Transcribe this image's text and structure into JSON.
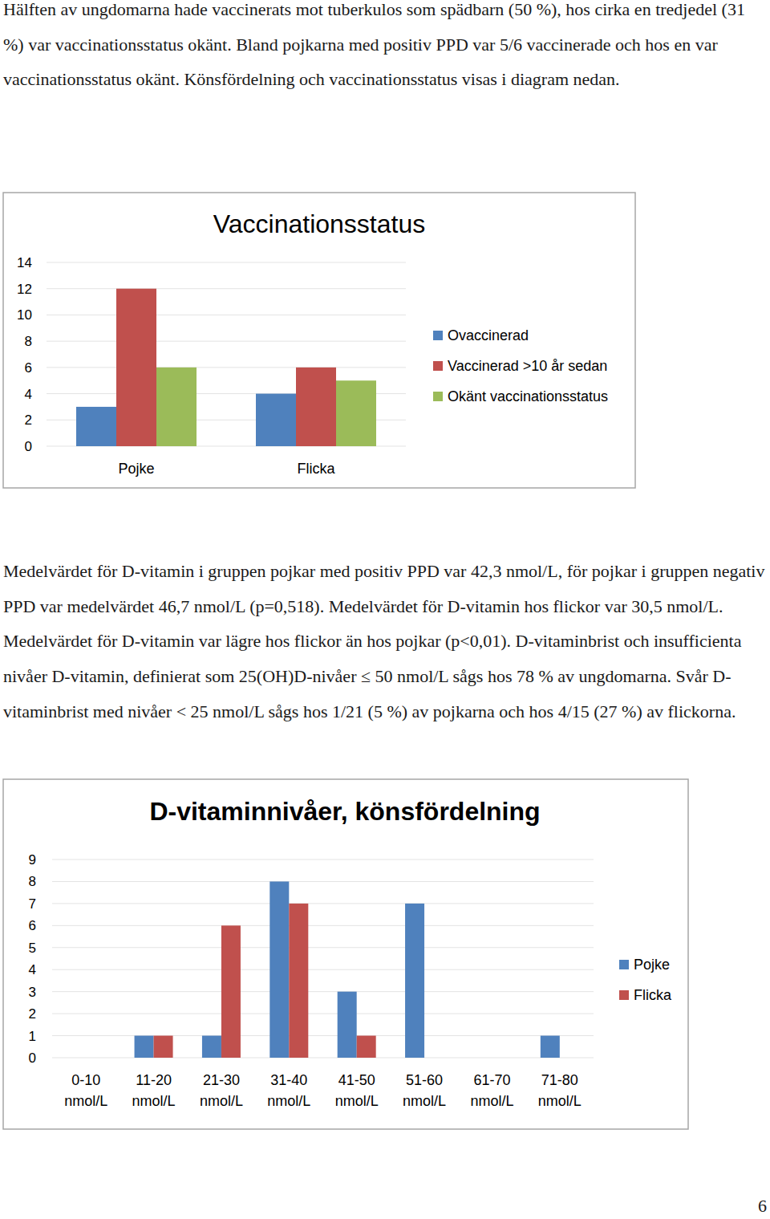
{
  "text": {
    "paragraphs": [
      "Hälften av ungdomarna hade vaccinerats mot tuberkulos som spädbarn (50 %), hos cirka en tredjedel (31 %) var vaccinationsstatus okänt. Bland pojkarna med positiv PPD var 5/6 vaccinerade och hos en var vaccinationsstatus okänt. Könsfördelning och vaccinationsstatus visas i diagram nedan.",
      "Medelvärdet för D-vitamin i gruppen pojkar med positiv PPD var 42,3 nmol/L, för pojkar i gruppen negativ PPD var medelvärdet 46,7 nmol/L (p=0,518). Medelvärdet för D-vitamin hos flickor var 30,5 nmol/L. Medelvärdet för D-vitamin var lägre hos flickor än hos pojkar (p<0,01). D-vitaminbrist och insufficienta nivåer D-vitamin, definierat som 25(OH)D-nivåer ≤ 50 nmol/L sågs hos 78 % av ungdomarna. Svår D-vitaminbrist med nivåer < 25 nmol/L sågs hos 1/21 (5 %) av pojkarna och hos 4/15 (27 %) av flickorna."
    ],
    "page_number": "6"
  },
  "chart_data": [
    {
      "type": "bar",
      "title": "Vaccinationsstatus",
      "categories": [
        "Pojke",
        "Flicka"
      ],
      "series": [
        {
          "name": "Ovaccinerad",
          "color": "#4f81bd",
          "values": [
            3,
            4
          ]
        },
        {
          "name": "Vaccinerad >10 år sedan",
          "color": "#c0504d",
          "values": [
            12,
            6
          ]
        },
        {
          "name": "Okänt vaccinationsstatus",
          "color": "#9bbb59",
          "values": [
            6,
            5
          ]
        }
      ],
      "ylim": [
        0,
        14
      ],
      "yticks": [
        0,
        2,
        4,
        6,
        8,
        10,
        12,
        14
      ],
      "grid": true,
      "legend": "right"
    },
    {
      "type": "bar",
      "title": "D-vitaminnivåer, könsfördelning",
      "categories": [
        "0-10 nmol/L",
        "11-20 nmol/L",
        "21-30 nmol/L",
        "31-40 nmol/L",
        "41-50 nmol/L",
        "51-60 nmol/L",
        "61-70 nmol/L",
        "71-80 nmol/L"
      ],
      "series": [
        {
          "name": "Pojke",
          "color": "#4f81bd",
          "values": [
            0,
            1,
            1,
            8,
            3,
            7,
            0,
            1
          ]
        },
        {
          "name": "Flicka",
          "color": "#c0504d",
          "values": [
            0,
            1,
            6,
            7,
            1,
            0,
            0,
            0
          ]
        }
      ],
      "ylim": [
        0,
        9
      ],
      "yticks": [
        0,
        1,
        2,
        3,
        4,
        5,
        6,
        7,
        8,
        9
      ],
      "grid": true,
      "legend": "right"
    }
  ]
}
